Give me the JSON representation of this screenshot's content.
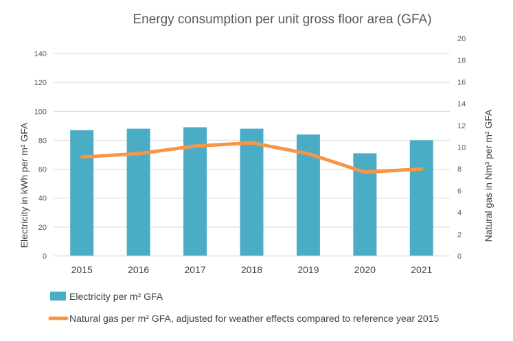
{
  "chart_data": {
    "type": "bar",
    "title": "Energy consumption per unit gross floor area (GFA)",
    "categories": [
      "2015",
      "2016",
      "2017",
      "2018",
      "2019",
      "2020",
      "2021"
    ],
    "ylabel": "Electricity in kWh per m² GFA",
    "y2label": "Natural gas in Nm³ per m² GFA",
    "ylim": [
      0,
      140
    ],
    "yticks": [
      0,
      20,
      40,
      60,
      80,
      100,
      120,
      140
    ],
    "y2lim": [
      0,
      20
    ],
    "y2ticks": [
      0,
      2,
      4,
      6,
      8,
      10,
      12,
      14,
      16,
      18,
      20
    ],
    "grid": true,
    "series": [
      {
        "name": "Electricity per m² GFA",
        "type": "bar",
        "axis": "left",
        "color": "#4bacc6",
        "values": [
          87,
          88,
          89,
          88,
          84,
          71,
          80
        ]
      },
      {
        "name": "Natural gas per m² GFA, adjusted for weather effects compared to reference year 2015",
        "type": "line",
        "axis": "right",
        "color": "#f79646",
        "values": [
          9.1,
          9.4,
          10.1,
          10.4,
          9.4,
          7.7,
          8.0
        ]
      }
    ],
    "legend_position": "bottom"
  }
}
